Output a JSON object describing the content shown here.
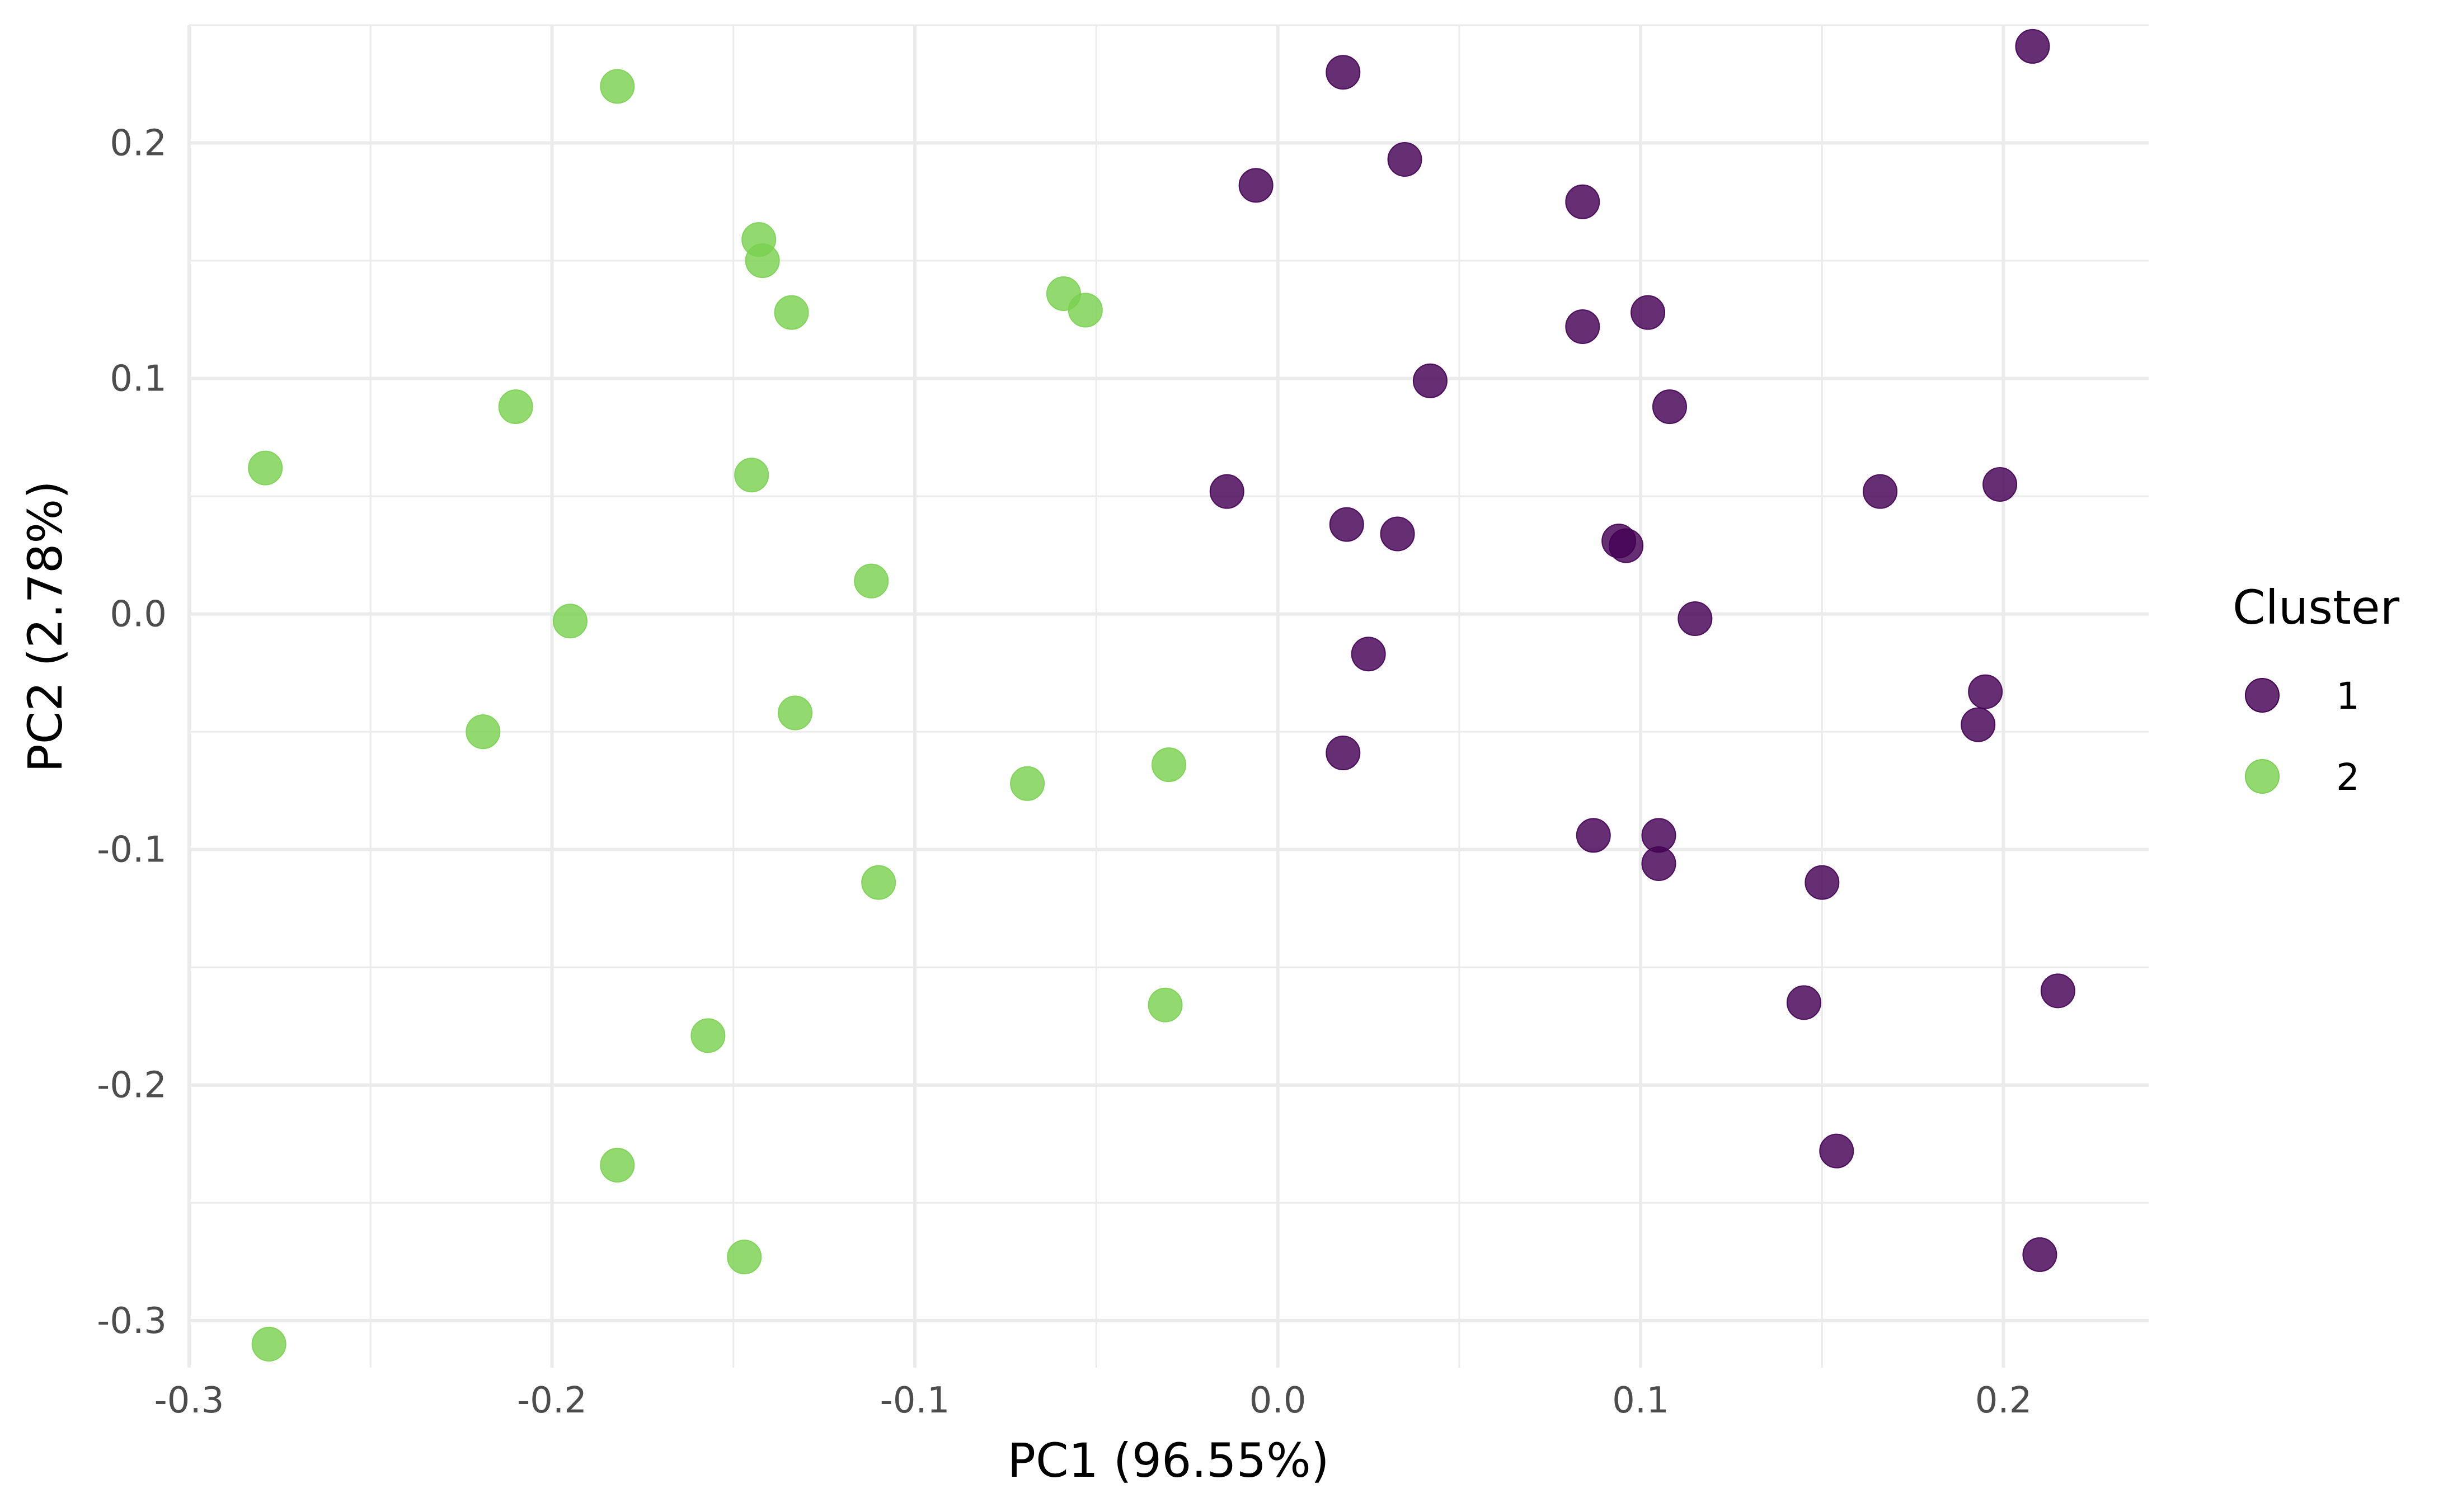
{
  "chart_data": {
    "type": "scatter",
    "title": "",
    "xlabel": "PC1 (96.55%)",
    "ylabel": "PC2 (2.78%)",
    "xlim": [
      -0.3,
      0.24
    ],
    "ylim": [
      -0.32,
      0.25
    ],
    "x_ticks": [
      -0.3,
      -0.2,
      -0.1,
      0.0,
      0.1,
      0.2
    ],
    "x_tick_labels": [
      "-0.3",
      "-0.2",
      "-0.1",
      "0.0",
      "0.1",
      "0.2"
    ],
    "y_ticks": [
      -0.3,
      -0.2,
      -0.1,
      0.0,
      0.1,
      0.2
    ],
    "y_tick_labels": [
      "-0.3",
      "-0.2",
      "-0.1",
      "0.0",
      "0.1",
      "0.2"
    ],
    "grid": true,
    "legend": {
      "title": "Cluster",
      "position": "right",
      "entries": [
        {
          "label": "1",
          "color": "#440154"
        },
        {
          "label": "2",
          "color": "#7AD151"
        }
      ]
    },
    "series": [
      {
        "name": "1",
        "color": "#440154",
        "points": [
          {
            "x": 0.208,
            "y": 0.241
          },
          {
            "x": 0.018,
            "y": 0.23
          },
          {
            "x": 0.035,
            "y": 0.193
          },
          {
            "x": -0.006,
            "y": 0.182
          },
          {
            "x": 0.084,
            "y": 0.175
          },
          {
            "x": 0.102,
            "y": 0.128
          },
          {
            "x": 0.084,
            "y": 0.122
          },
          {
            "x": 0.042,
            "y": 0.099
          },
          {
            "x": 0.108,
            "y": 0.088
          },
          {
            "x": -0.014,
            "y": 0.052
          },
          {
            "x": 0.166,
            "y": 0.052
          },
          {
            "x": 0.199,
            "y": 0.055
          },
          {
            "x": 0.019,
            "y": 0.038
          },
          {
            "x": 0.033,
            "y": 0.034
          },
          {
            "x": 0.094,
            "y": 0.031
          },
          {
            "x": 0.096,
            "y": 0.029
          },
          {
            "x": 0.115,
            "y": -0.002
          },
          {
            "x": 0.025,
            "y": -0.017
          },
          {
            "x": 0.195,
            "y": -0.033
          },
          {
            "x": 0.193,
            "y": -0.047
          },
          {
            "x": 0.018,
            "y": -0.059
          },
          {
            "x": 0.087,
            "y": -0.094
          },
          {
            "x": 0.105,
            "y": -0.094
          },
          {
            "x": 0.105,
            "y": -0.106
          },
          {
            "x": 0.15,
            "y": -0.114
          },
          {
            "x": 0.215,
            "y": -0.16
          },
          {
            "x": 0.145,
            "y": -0.165
          },
          {
            "x": 0.154,
            "y": -0.228
          },
          {
            "x": 0.21,
            "y": -0.272
          }
        ]
      },
      {
        "name": "2",
        "color": "#7AD151",
        "points": [
          {
            "x": -0.182,
            "y": 0.224
          },
          {
            "x": -0.143,
            "y": 0.159
          },
          {
            "x": -0.142,
            "y": 0.15
          },
          {
            "x": -0.134,
            "y": 0.128
          },
          {
            "x": -0.059,
            "y": 0.136
          },
          {
            "x": -0.053,
            "y": 0.129
          },
          {
            "x": -0.21,
            "y": 0.088
          },
          {
            "x": -0.279,
            "y": 0.062
          },
          {
            "x": -0.145,
            "y": 0.059
          },
          {
            "x": -0.112,
            "y": 0.014
          },
          {
            "x": -0.195,
            "y": -0.003
          },
          {
            "x": -0.219,
            "y": -0.05
          },
          {
            "x": -0.133,
            "y": -0.042
          },
          {
            "x": -0.069,
            "y": -0.072
          },
          {
            "x": -0.03,
            "y": -0.064
          },
          {
            "x": -0.11,
            "y": -0.114
          },
          {
            "x": -0.031,
            "y": -0.166
          },
          {
            "x": -0.157,
            "y": -0.179
          },
          {
            "x": -0.182,
            "y": -0.234
          },
          {
            "x": -0.147,
            "y": -0.273
          },
          {
            "x": -0.278,
            "y": -0.31
          }
        ]
      }
    ]
  }
}
